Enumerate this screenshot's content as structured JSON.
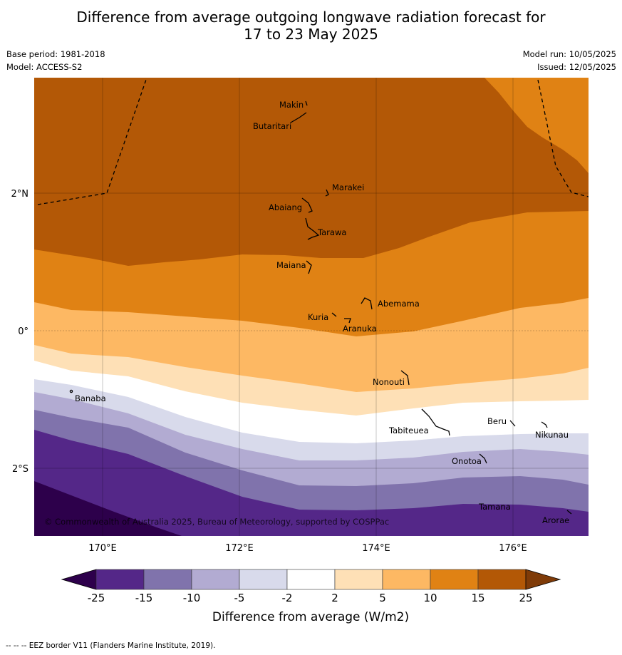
{
  "header": {
    "title_line1": "Difference from average outgoing longwave radiation forecast for",
    "title_line2": "17 to 23 May 2025",
    "base_period": "Base period: 1981-2018",
    "model": "Model: ACCESS-S2",
    "model_run": "Model run: 10/05/2025",
    "issued": "Issued: 12/05/2025"
  },
  "map": {
    "lat_labels": [
      "2°N",
      "0°",
      "2°S"
    ],
    "lon_labels": [
      "170°E",
      "172°E",
      "174°E",
      "176°E"
    ],
    "places": [
      "Makin",
      "Butaritari",
      "Marakei",
      "Abaiang",
      "Tarawa",
      "Maiana",
      "Abemama",
      "Kuria",
      "Aranuka",
      "Nonouti",
      "Banaba",
      "Beru",
      "Nikunau",
      "Tabiteuea",
      "Onotoa",
      "Tamana",
      "Arorae"
    ],
    "copyright": "© Commonwealth of Australia 2025, Bureau of Meteorology, supported by COSPPac"
  },
  "colorbar": {
    "tick_labels": [
      "-25",
      "-15",
      "-10",
      "-5",
      "-2",
      "2",
      "5",
      "10",
      "15",
      "25"
    ],
    "label": "Difference from average (W/m2)",
    "colors": [
      "#2d004b",
      "#542788",
      "#8073ac",
      "#b2abd2",
      "#d8daeb",
      "#ffffff",
      "#fee0b6",
      "#fdb863",
      "#e08214",
      "#b35806",
      "#7f3b08"
    ]
  },
  "footer": {
    "eez_note": "--  --  -- EEZ border V11 (Flanders Marine Institute, 2019)."
  }
}
